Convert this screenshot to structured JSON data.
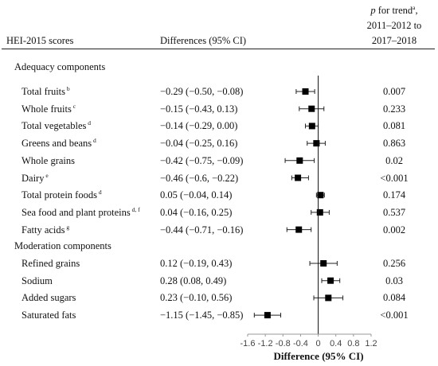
{
  "header": {
    "col_scores": "HEI-2015 scores",
    "col_diff": "Differences (95% CI)",
    "col_p_line1_prefix": "p",
    "col_p_line1_rest": " for trend",
    "col_p_line1_sup": "a",
    "col_p_line1_suffix": ",",
    "col_p_line2": "2011–2012 to",
    "col_p_line3": "2017–2018"
  },
  "chart_data": {
    "type": "forest",
    "xlabel": "Difference (95% CI)",
    "xlim": [
      -1.6,
      1.2
    ],
    "xticks": [
      -1.6,
      -1.2,
      -0.8,
      -0.4,
      0,
      0.4,
      0.8,
      1.2
    ],
    "xtick_labels": [
      "-1.6",
      "-1.2",
      "-0.8",
      "-0.4",
      "0",
      "0.4",
      "0.8",
      "1.2"
    ],
    "reference_line": 0,
    "groups": [
      {
        "label": "Adequacy components",
        "rows": [
          {
            "name": "Total fruits",
            "sup": "b",
            "ci_text": "−0.29 (−0.50, −0.08)",
            "estimate": -0.29,
            "lower": -0.5,
            "upper": -0.08,
            "p": "0.007"
          },
          {
            "name": "Whole fruits",
            "sup": "c",
            "ci_text": "−0.15 (−0.43, 0.13)",
            "estimate": -0.15,
            "lower": -0.43,
            "upper": 0.13,
            "p": "0.233"
          },
          {
            "name": "Total vegetables",
            "sup": "d",
            "ci_text": "−0.14 (−0.29, 0.00)",
            "estimate": -0.14,
            "lower": -0.29,
            "upper": 0.0,
            "p": "0.081"
          },
          {
            "name": "Greens and beans",
            "sup": "d",
            "ci_text": "−0.04 (−0.25, 0.16)",
            "estimate": -0.04,
            "lower": -0.25,
            "upper": 0.16,
            "p": "0.863"
          },
          {
            "name": "Whole grains",
            "sup": "",
            "ci_text": "−0.42 (−0.75, −0.09)",
            "estimate": -0.42,
            "lower": -0.75,
            "upper": -0.09,
            "p": "0.02"
          },
          {
            "name": "Dairy",
            "sup": "e",
            "ci_text": "−0.46 (−0.6, −0.22)",
            "estimate": -0.46,
            "lower": -0.6,
            "upper": -0.22,
            "p": "<0.001"
          },
          {
            "name": "Total protein foods",
            "sup": "d",
            "ci_text": "0.05 (−0.04, 0.14)",
            "estimate": 0.05,
            "lower": -0.04,
            "upper": 0.14,
            "p": "0.174"
          },
          {
            "name": "Sea food and plant proteins",
            "sup": "d, f",
            "ci_text": "0.04 (−0.16, 0.25)",
            "estimate": 0.04,
            "lower": -0.16,
            "upper": 0.25,
            "p": "0.537"
          },
          {
            "name": "Fatty acids",
            "sup": "g",
            "ci_text": "−0.44 (−0.71, −0.16)",
            "estimate": -0.44,
            "lower": -0.71,
            "upper": -0.16,
            "p": "0.002"
          }
        ]
      },
      {
        "label": "Moderation components",
        "rows": [
          {
            "name": "Refined grains",
            "sup": "",
            "ci_text": "0.12 (−0.19, 0.43)",
            "estimate": 0.12,
            "lower": -0.19,
            "upper": 0.43,
            "p": "0.256"
          },
          {
            "name": "Sodium",
            "sup": "",
            "ci_text": "0.28 (0.08, 0.49)",
            "estimate": 0.28,
            "lower": 0.08,
            "upper": 0.49,
            "p": "0.03"
          },
          {
            "name": "Added sugars",
            "sup": "",
            "ci_text": "0.23 (−0.10, 0.56)",
            "estimate": 0.23,
            "lower": -0.1,
            "upper": 0.56,
            "p": "0.084"
          },
          {
            "name": "Saturated fats",
            "sup": "",
            "ci_text": "−1.15 (−1.45, −0.85)",
            "estimate": -1.15,
            "lower": -1.45,
            "upper": -0.85,
            "p": "<0.001"
          }
        ]
      }
    ]
  }
}
